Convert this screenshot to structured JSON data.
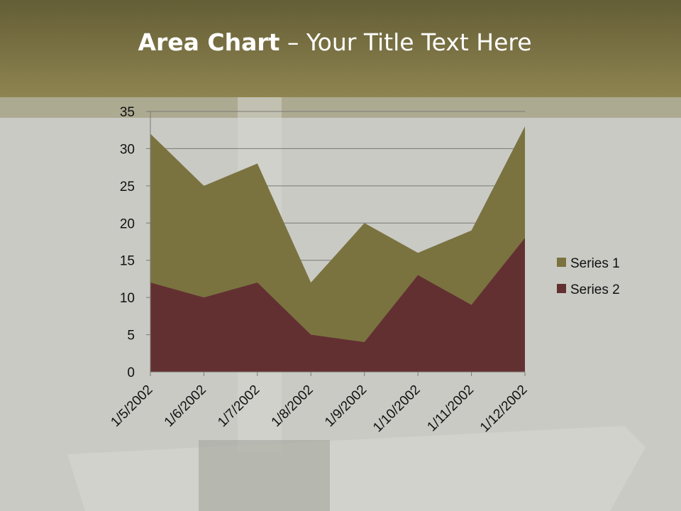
{
  "slide": {
    "title_bold": "Area Chart",
    "title_rest": " – Your Title Text Here"
  },
  "chart_data": {
    "type": "area",
    "categories": [
      "1/5/2002",
      "1/6/2002",
      "1/7/2002",
      "1/8/2002",
      "1/9/2002",
      "1/10/2002",
      "1/11/2002",
      "1/12/2002"
    ],
    "series": [
      {
        "name": "Series 1",
        "values": [
          32,
          25,
          28,
          12,
          20,
          16,
          19,
          33
        ],
        "color": "#7a7340"
      },
      {
        "name": "Series 2",
        "values": [
          12,
          10,
          12,
          5,
          4,
          13,
          9,
          18
        ],
        "color": "#633032"
      }
    ],
    "ylim": [
      0,
      35
    ],
    "yticks": [
      0,
      5,
      10,
      15,
      20,
      25,
      30,
      35
    ],
    "grid": true,
    "legend": "right"
  }
}
